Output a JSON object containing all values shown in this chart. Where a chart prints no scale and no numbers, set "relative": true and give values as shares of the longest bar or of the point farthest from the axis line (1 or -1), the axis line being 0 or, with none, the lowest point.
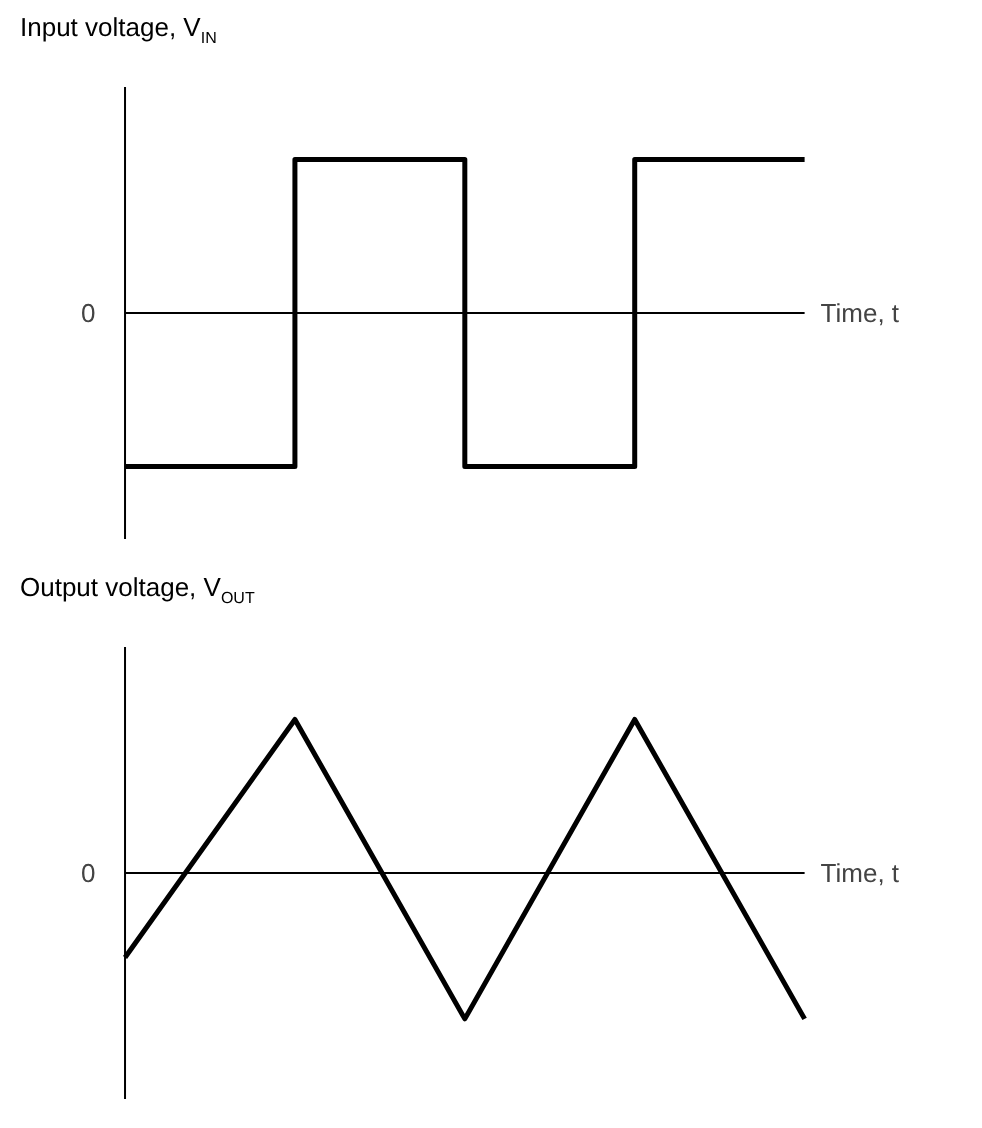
{
  "chart_data": [
    {
      "type": "step",
      "title": "Input voltage, V$_{IN}$",
      "xlabel": "Time, t",
      "relative": true,
      "categories": [
        null,
        null,
        null,
        null,
        null
      ],
      "series": [
        {
          "color": "#000000",
          "values": [
            -1,
            1,
            -1,
            1,
            1
          ]
        }
      ],
      "annotations": [
        "0"
      ],
      "grid": false
    },
    {
      "type": "line",
      "title": "Output voltage, V$_{OUT}$",
      "xlabel": "Time, t",
      "relative": true,
      "categories": [
        null,
        null,
        null,
        null,
        null
      ],
      "series": [
        {
          "color": "#000000",
          "values": [
            -0.55,
            1,
            -0.95,
            1,
            -0.95
          ]
        }
      ],
      "annotations": [
        "0"
      ],
      "grid": false
    }
  ]
}
